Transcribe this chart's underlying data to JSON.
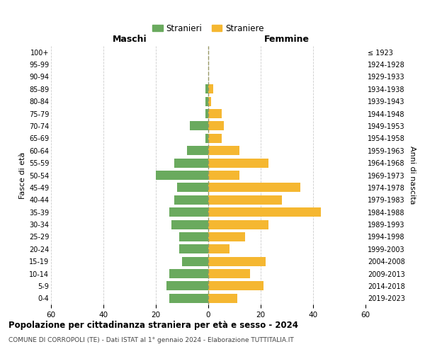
{
  "age_groups": [
    "0-4",
    "5-9",
    "10-14",
    "15-19",
    "20-24",
    "25-29",
    "30-34",
    "35-39",
    "40-44",
    "45-49",
    "50-54",
    "55-59",
    "60-64",
    "65-69",
    "70-74",
    "75-79",
    "80-84",
    "85-89",
    "90-94",
    "95-99",
    "100+"
  ],
  "birth_years": [
    "2019-2023",
    "2014-2018",
    "2009-2013",
    "2004-2008",
    "1999-2003",
    "1994-1998",
    "1989-1993",
    "1984-1988",
    "1979-1983",
    "1974-1978",
    "1969-1973",
    "1964-1968",
    "1959-1963",
    "1954-1958",
    "1949-1953",
    "1944-1948",
    "1939-1943",
    "1934-1938",
    "1929-1933",
    "1924-1928",
    "≤ 1923"
  ],
  "males": [
    15,
    16,
    15,
    10,
    11,
    11,
    14,
    15,
    13,
    12,
    20,
    13,
    8,
    1,
    7,
    1,
    1,
    1,
    0,
    0,
    0
  ],
  "females": [
    11,
    21,
    16,
    22,
    8,
    14,
    23,
    43,
    28,
    35,
    12,
    23,
    12,
    5,
    6,
    5,
    1,
    2,
    0,
    0,
    0
  ],
  "male_color": "#6aaa5e",
  "female_color": "#f5b731",
  "background_color": "#ffffff",
  "grid_color": "#cccccc",
  "title": "Popolazione per cittadinanza straniera per età e sesso - 2024",
  "subtitle": "COMUNE DI CORROPOLI (TE) - Dati ISTAT al 1° gennaio 2024 - Elaborazione TUTTITALIA.IT",
  "xlabel_left": "Maschi",
  "xlabel_right": "Femmine",
  "ylabel_left": "Fasce di età",
  "ylabel_right": "Anni di nascita",
  "legend_male": "Stranieri",
  "legend_female": "Straniere",
  "xlim": 60,
  "bar_height": 0.75
}
